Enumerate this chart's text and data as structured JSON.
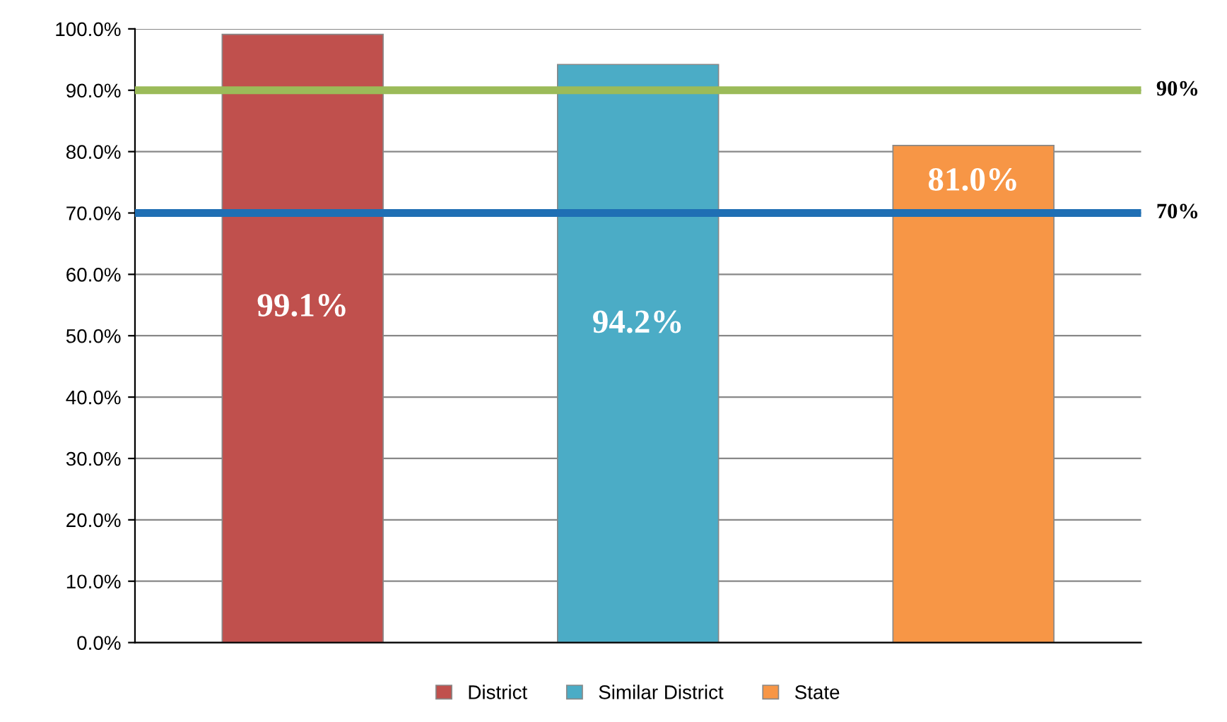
{
  "chart_data": {
    "type": "bar",
    "categories": [
      null,
      null,
      null
    ],
    "series": [
      {
        "name": "District",
        "color": "#c0504d",
        "values": [
          99.1,
          null,
          null
        ],
        "value_labels": [
          "99.1%",
          null,
          null
        ]
      },
      {
        "name": "Similar District",
        "color": "#4bacc6",
        "values": [
          null,
          94.2,
          null
        ],
        "value_labels": [
          null,
          "94.2%",
          null
        ]
      },
      {
        "name": "State",
        "color": "#f79646",
        "values": [
          null,
          null,
          81.0
        ],
        "value_labels": [
          null,
          null,
          "81.0%"
        ]
      }
    ],
    "ylim": [
      0,
      100
    ],
    "yticks": [
      {
        "value": 0,
        "label": "0.0%"
      },
      {
        "value": 10,
        "label": "10.0%"
      },
      {
        "value": 20,
        "label": "20.0%"
      },
      {
        "value": 30,
        "label": "30.0%"
      },
      {
        "value": 40,
        "label": "40.0%"
      },
      {
        "value": 50,
        "label": "50.0%"
      },
      {
        "value": 60,
        "label": "60.0%"
      },
      {
        "value": 70,
        "label": "70.0%"
      },
      {
        "value": 80,
        "label": "80.0%"
      },
      {
        "value": 90,
        "label": "90.0%"
      },
      {
        "value": 100,
        "label": "100.0%"
      }
    ],
    "ref_lines": [
      {
        "axis": "y",
        "value": 90,
        "label": "90%",
        "color": "#9bbb59"
      },
      {
        "axis": "y",
        "value": 70,
        "label": "70%",
        "color": "#1f6fb4"
      }
    ],
    "grid": "y",
    "legend": "bottom"
  }
}
